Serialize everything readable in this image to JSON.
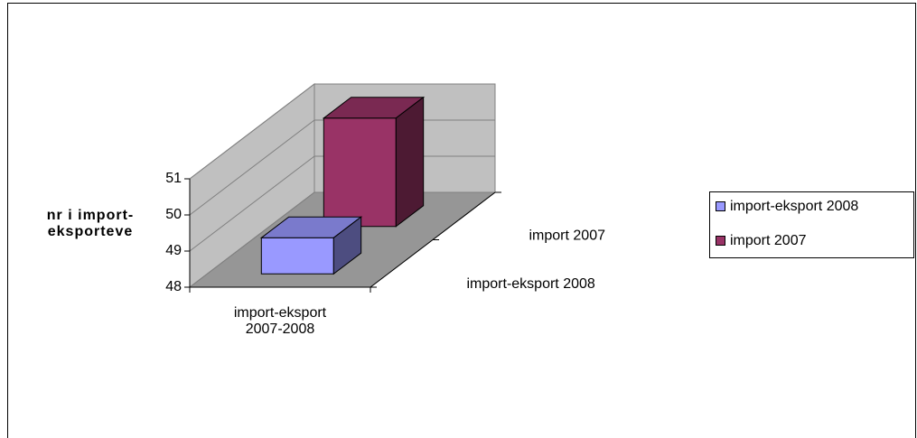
{
  "chart_data": {
    "type": "bar3d",
    "y_label": "nr i import-eksporteve",
    "categories": [
      "import-eksport 2007-2008"
    ],
    "series": [
      {
        "name": "import-eksport 2008",
        "color": "#9999ff",
        "values": [
          49
        ]
      },
      {
        "name": "import 2007",
        "color": "#993366",
        "values": [
          51
        ]
      }
    ],
    "ylim": [
      48,
      51
    ],
    "yticks": [
      48,
      49,
      50,
      51
    ],
    "grid": true,
    "legend": "right"
  }
}
